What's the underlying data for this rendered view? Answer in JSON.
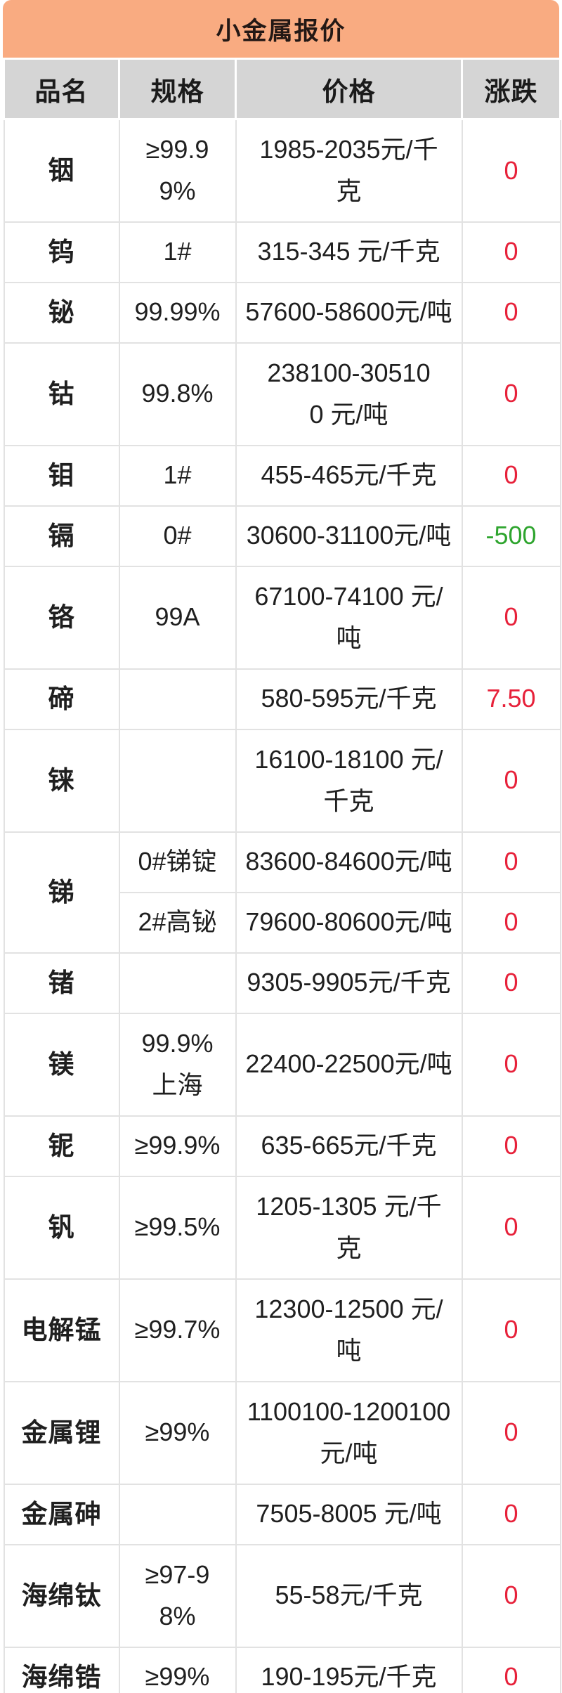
{
  "title": "小金属报价",
  "columns": {
    "name": "品名",
    "spec": "规格",
    "price": "价格",
    "change": "涨跌"
  },
  "colors": {
    "title_bg": "#F9AB81",
    "header_bg": "#D5D5D5",
    "up": "#E7213A",
    "down": "#2FA52F",
    "border": "#E2E2E2",
    "ink": "#1F1F1F"
  },
  "rows": [
    {
      "name": "铟",
      "spec": "≥99.9\n9%",
      "price": "1985-2035元/千\n克",
      "change": "0",
      "trend": "up"
    },
    {
      "name": "钨",
      "spec": "1#",
      "price": "315-345 元/千克",
      "change": "0",
      "trend": "up"
    },
    {
      "name": "铋",
      "spec": "99.99%",
      "price": "57600-58600元/吨",
      "change": "0",
      "trend": "up"
    },
    {
      "name": "钴",
      "spec": "99.8%",
      "price": "238100-30510\n0 元/吨",
      "change": "0",
      "trend": "up"
    },
    {
      "name": "钼",
      "spec": "1#",
      "price": "455-465元/千克",
      "change": "0",
      "trend": "up"
    },
    {
      "name": "镉",
      "spec": "0#",
      "price": "30600-31100元/吨",
      "change": "-500",
      "trend": "down"
    },
    {
      "name": "铬",
      "spec": "99A",
      "price": "67100-74100 元/\n吨",
      "change": "0",
      "trend": "up"
    },
    {
      "name": "碲",
      "spec": "",
      "price": "580-595元/千克",
      "change": "7.50",
      "trend": "up"
    },
    {
      "name": "铼",
      "spec": "",
      "price": "16100-18100 元/\n千克",
      "change": "0",
      "trend": "up"
    },
    {
      "name": "锑",
      "spec": "0#锑锭",
      "price": "83600-84600元/吨",
      "change": "0",
      "trend": "up"
    },
    {
      "name": "",
      "spec": "2#高铋",
      "price": "79600-80600元/吨",
      "change": "0",
      "trend": "up"
    },
    {
      "name": "锗",
      "spec": "",
      "price": "9305-9905元/千克",
      "change": "0",
      "trend": "up"
    },
    {
      "name": "镁",
      "spec": "99.9%\n上海",
      "price": "22400-22500元/吨",
      "change": "0",
      "trend": "up"
    },
    {
      "name": "铌",
      "spec": "≥99.9%",
      "price": "635-665元/千克",
      "change": "0",
      "trend": "up"
    },
    {
      "name": "钒",
      "spec": "≥99.5%",
      "price": "1205-1305 元/千\n克",
      "change": "0",
      "trend": "up"
    },
    {
      "name": "电解锰",
      "spec": "≥99.7%",
      "price": "12300-12500 元/\n吨",
      "change": "0",
      "trend": "up"
    },
    {
      "name": "金属锂",
      "spec": "≥99%",
      "price": "1100100-1200100\n元/吨",
      "change": "0",
      "trend": "up"
    },
    {
      "name": "金属砷",
      "spec": "",
      "price": "7505-8005 元/吨",
      "change": "0",
      "trend": "up"
    },
    {
      "name": "海绵钛",
      "spec": "≥97-9\n8%",
      "price": "55-58元/千克",
      "change": "0",
      "trend": "up"
    },
    {
      "name": "海绵锆",
      "spec": "≥99%",
      "price": "190-195元/千克",
      "change": "0",
      "trend": "up"
    }
  ]
}
